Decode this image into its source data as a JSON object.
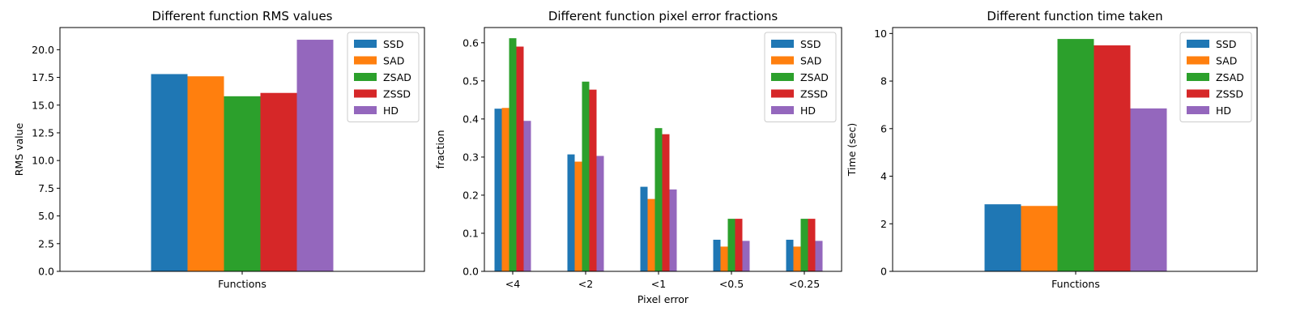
{
  "chart_data": [
    {
      "type": "bar",
      "title": "Different function RMS values",
      "xlabel": "",
      "ylabel": "RMS value",
      "categories": [
        "Functions"
      ],
      "series": [
        {
          "name": "SSD",
          "values": [
            17.8
          ]
        },
        {
          "name": "SAD",
          "values": [
            17.6
          ]
        },
        {
          "name": "ZSAD",
          "values": [
            15.8
          ]
        },
        {
          "name": "ZSSD",
          "values": [
            16.1
          ]
        },
        {
          "name": "HD",
          "values": [
            20.9
          ]
        }
      ],
      "ylim": [
        0,
        22
      ],
      "yticks": [
        "0.0",
        "2.5",
        "5.0",
        "7.5",
        "10.0",
        "12.5",
        "15.0",
        "17.5",
        "20.0"
      ],
      "grid": false,
      "legend": "top-right"
    },
    {
      "type": "bar",
      "title": "Different function pixel error fractions",
      "xlabel": "Pixel error",
      "ylabel": "fraction",
      "categories": [
        "<4",
        "<2",
        "<1",
        "<0.5",
        "<0.25"
      ],
      "series": [
        {
          "name": "SSD",
          "values": [
            0.427,
            0.307,
            0.222,
            0.083,
            0.083
          ]
        },
        {
          "name": "SAD",
          "values": [
            0.429,
            0.288,
            0.19,
            0.065,
            0.065
          ]
        },
        {
          "name": "ZSAD",
          "values": [
            0.612,
            0.498,
            0.376,
            0.138,
            0.138
          ]
        },
        {
          "name": "ZSSD",
          "values": [
            0.59,
            0.477,
            0.36,
            0.138,
            0.138
          ]
        },
        {
          "name": "HD",
          "values": [
            0.395,
            0.303,
            0.215,
            0.08,
            0.08
          ]
        }
      ],
      "ylim": [
        0,
        0.64
      ],
      "yticks": [
        "0.0",
        "0.1",
        "0.2",
        "0.3",
        "0.4",
        "0.5",
        "0.6"
      ],
      "grid": false,
      "legend": "top-right"
    },
    {
      "type": "bar",
      "title": "Different function time taken",
      "xlabel": "",
      "ylabel": "Time (sec)",
      "categories": [
        "Functions"
      ],
      "series": [
        {
          "name": "SSD",
          "values": [
            2.82
          ]
        },
        {
          "name": "SAD",
          "values": [
            2.75
          ]
        },
        {
          "name": "ZSAD",
          "values": [
            9.77
          ]
        },
        {
          "name": "ZSSD",
          "values": [
            9.5
          ]
        },
        {
          "name": "HD",
          "values": [
            6.85
          ]
        }
      ],
      "ylim": [
        0,
        10.25
      ],
      "yticks": [
        "0",
        "2",
        "4",
        "6",
        "8",
        "10"
      ],
      "grid": false,
      "legend": "top-right"
    }
  ],
  "colors": [
    "#1f77b4",
    "#ff7f0e",
    "#2ca02c",
    "#d62728",
    "#9467bd"
  ]
}
